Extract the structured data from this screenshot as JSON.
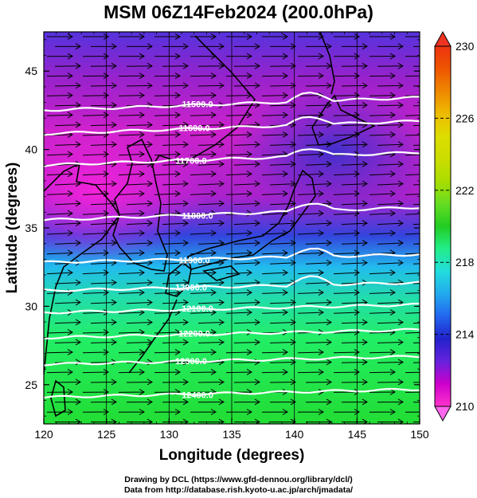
{
  "title": "MSM 06Z14Feb2024 (200.0hPa)",
  "map": {
    "x_axis": {
      "label": "Longitude (degrees)",
      "ticks": [
        "120",
        "125",
        "130",
        "135",
        "140",
        "145",
        "150"
      ],
      "range": [
        120,
        150
      ]
    },
    "y_axis": {
      "label": "Latitude  (degrees)",
      "ticks": [
        "25",
        "30",
        "35",
        "40",
        "45"
      ],
      "range": [
        22.5,
        47.5
      ]
    },
    "contours": [
      {
        "label": "11500.0",
        "lat": 42.5
      },
      {
        "label": "11600.0",
        "lat": 41.0
      },
      {
        "label": "11700.0",
        "lat": 39.0
      },
      {
        "label": "11800.0",
        "lat": 35.5
      },
      {
        "label": "11900.0",
        "lat": 32.8
      },
      {
        "label": "12000.0",
        "lat": 31.0
      },
      {
        "label": "12100.0",
        "lat": 29.6
      },
      {
        "label": "12200.0",
        "lat": 28.0
      },
      {
        "label": "12300.0",
        "lat": 26.3
      },
      {
        "label": "12400.0",
        "lat": 24.2
      }
    ],
    "wind": "westerly vectors",
    "colors": {
      "contour": "#ffffff",
      "coast": "#000000",
      "vectors": "#000000"
    }
  },
  "colorbar": {
    "min": 210,
    "max": 230,
    "ticks": [
      "230",
      "226",
      "222",
      "218",
      "214",
      "210"
    ],
    "stops": [
      "#ff33cc",
      "#cc00cc",
      "#6622dd",
      "#2222cc",
      "#2266ee",
      "#22aaee",
      "#22dddd",
      "#22ee88",
      "#22cc22",
      "#66dd22",
      "#aadd00",
      "#ccdd00",
      "#dddd00",
      "#eebb00",
      "#ee8800",
      "#ee5500",
      "#ee3311"
    ]
  },
  "credits": {
    "line1": "Drawing by DCL (https://www.gfd-dennou.org/library/dcl/)",
    "line2": "Data from http://database.rish.kyoto-u.ac.jp/arch/jmadata/"
  }
}
